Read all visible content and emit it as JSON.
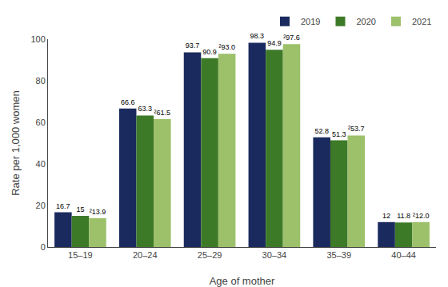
{
  "chart_data": {
    "type": "bar",
    "categories": [
      "15–19",
      "20–24",
      "25–29",
      "30–34",
      "35–39",
      "40–44"
    ],
    "series": [
      {
        "name": "2019",
        "color": "#1b2a5e",
        "values": [
          16.7,
          66.6,
          93.7,
          98.3,
          52.8,
          12.0
        ]
      },
      {
        "name": "2020",
        "color": "#3d7a28",
        "values": [
          15.0,
          63.3,
          90.9,
          94.9,
          51.3,
          11.8
        ]
      },
      {
        "name": "2021",
        "color": "#9dc06a",
        "values": [
          13.9,
          61.5,
          93.0,
          97.6,
          53.7,
          12.0
        ],
        "value_labels": [
          "²13.9",
          "²61.5",
          "²93.0",
          "²97.6",
          "²53.7",
          "²12.0"
        ]
      }
    ],
    "xlabel": "Age of mother",
    "ylabel": "Rate per 1,000 women",
    "ylim": [
      0,
      100
    ],
    "yticks": [
      0,
      20,
      40,
      60,
      80,
      100
    ],
    "grid": false,
    "legend": "upper right",
    "data_labels": true
  }
}
